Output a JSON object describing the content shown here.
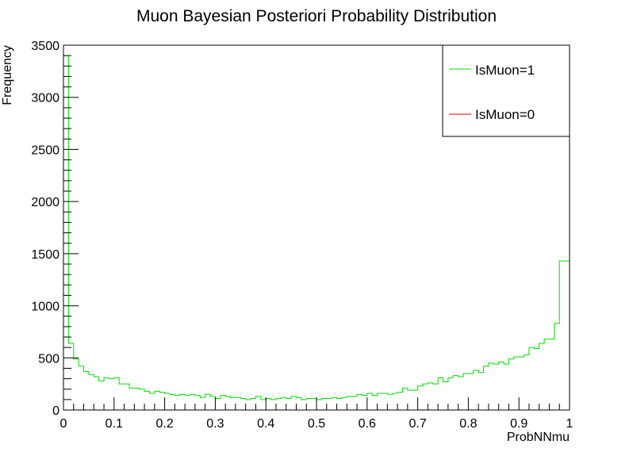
{
  "chart_data": {
    "type": "histogram",
    "title": "Muon Bayesian Posteriori Probability Distribution",
    "xlabel": "ProbNNmu",
    "ylabel": "Frequency",
    "xlim": [
      0,
      1
    ],
    "ylim": [
      0,
      3500
    ],
    "x_ticks": [
      0,
      0.1,
      0.2,
      0.3,
      0.4,
      0.5,
      0.6,
      0.7,
      0.8,
      0.9,
      1
    ],
    "x_tick_labels": [
      "0",
      "0.1",
      "0.2",
      "0.3",
      "0.4",
      "0.5",
      "0.6",
      "0.7",
      "0.8",
      "0.9",
      "1"
    ],
    "y_ticks": [
      0,
      500,
      1000,
      1500,
      2000,
      2500,
      3000,
      3500
    ],
    "y_tick_labels": [
      "0",
      "500",
      "1000",
      "1500",
      "2000",
      "2500",
      "3000",
      "3500"
    ],
    "bin_width": 0.01,
    "legend_position": "top-right",
    "grid": false,
    "series": [
      {
        "name": "IsMuon=1",
        "color": "#00dd00",
        "values": [
          3400,
          640,
          490,
          420,
          370,
          340,
          320,
          280,
          310,
          300,
          310,
          250,
          250,
          210,
          210,
          200,
          180,
          160,
          180,
          170,
          160,
          150,
          140,
          150,
          140,
          150,
          140,
          120,
          150,
          130,
          110,
          140,
          130,
          120,
          120,
          110,
          100,
          110,
          130,
          100,
          110,
          100,
          110,
          120,
          110,
          130,
          120,
          100,
          110,
          110,
          100,
          110,
          110,
          120,
          110,
          120,
          130,
          130,
          150,
          140,
          160,
          140,
          160,
          160,
          150,
          160,
          170,
          210,
          190,
          190,
          230,
          250,
          260,
          250,
          310,
          270,
          310,
          330,
          320,
          350,
          350,
          380,
          360,
          420,
          450,
          440,
          460,
          440,
          490,
          510,
          510,
          530,
          600,
          590,
          640,
          680,
          680,
          830,
          1430,
          1430
        ]
      },
      {
        "name": "IsMuon=0",
        "color": "#dd0000",
        "values": []
      }
    ]
  }
}
